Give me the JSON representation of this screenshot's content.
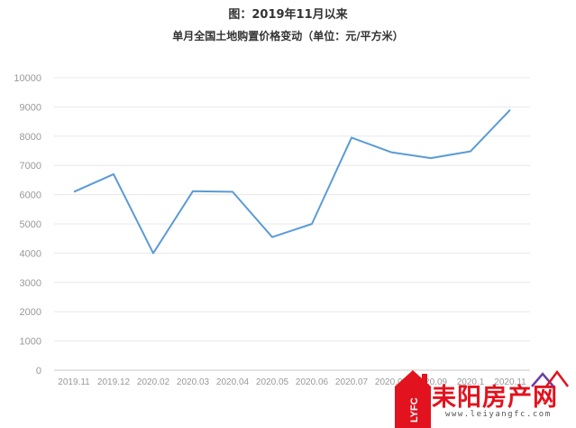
{
  "chart_data": {
    "type": "line",
    "title": "图：2019年11月以来",
    "subtitle": "单月全国土地购置价格变动（单位：元/平方米）",
    "categories": [
      "2019.11",
      "2019.12",
      "2020.02",
      "2020.03",
      "2020.04",
      "2020.05",
      "2020.06",
      "2020.07",
      "2020.08",
      "2020.09",
      "2020.1",
      "2020.11"
    ],
    "series": [
      {
        "values": [
          6100,
          6700,
          4000,
          6120,
          6100,
          4550,
          5000,
          7950,
          7450,
          7250,
          7480,
          8900
        ]
      }
    ],
    "xlabel": "",
    "ylabel": "",
    "ylim": [
      0,
      10000
    ],
    "yticks": [
      0,
      1000,
      2000,
      3000,
      4000,
      5000,
      6000,
      7000,
      8000,
      9000,
      10000
    ],
    "grid": true,
    "legend": "none",
    "line_color": "#5b9bd5"
  },
  "watermark": {
    "logo_text": "LYFC",
    "name": "耒阳房产网",
    "url": "www.leiyangfc.com",
    "brand_color": "#e2131e"
  }
}
